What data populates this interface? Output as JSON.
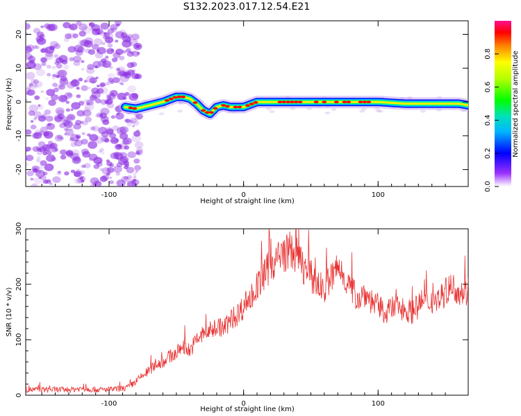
{
  "title": "S132.2023.017.12.54.E21",
  "colors": {
    "spectrum_ridge": "#ff0000",
    "snr_line": "#e83030",
    "scatter": "#8a2be2"
  },
  "chart_data": [
    {
      "type": "heatmap",
      "title": "S132.2023.017.12.54.E21",
      "xlabel": "Height of straight line (km)",
      "ylabel": "Frequency (Hz)",
      "xlim": [
        -162,
        167
      ],
      "ylim": [
        -25,
        24
      ],
      "xticks": [
        -100,
        0,
        100
      ],
      "yticks": [
        20,
        10,
        0,
        -10,
        -20
      ],
      "colorbar": {
        "label": "Normalized spectral amplitude",
        "range": [
          0,
          1
        ],
        "ticks": [
          "0.0",
          "0.2",
          "0.4",
          "0.6",
          "0.8"
        ],
        "colormap": "rainbow"
      },
      "noise_region_x": [
        -162,
        -85
      ],
      "ridge": {
        "x": [
          -88,
          -80,
          -70,
          -60,
          -50,
          -45,
          -40,
          -35,
          -30,
          -25,
          -20,
          -15,
          -10,
          -5,
          0,
          10,
          20,
          40,
          60,
          80,
          100,
          120,
          140,
          160,
          167
        ],
        "frequency": [
          -1.5,
          -2,
          -1,
          0,
          1.5,
          1.5,
          1,
          -0.5,
          -2.5,
          -3.5,
          -1.5,
          -1,
          -1.5,
          -1.5,
          -1.5,
          0,
          0,
          0,
          0,
          0,
          0,
          -0.5,
          -0.5,
          -0.5,
          -1
        ]
      }
    },
    {
      "type": "line",
      "xlabel": "Height of straight line (km)",
      "ylabel": "SNR (10 * v/v)",
      "xlim": [
        -162,
        167
      ],
      "ylim": [
        0,
        300
      ],
      "xticks": [
        -100,
        0,
        100
      ],
      "yticks": [
        0,
        100,
        200,
        300
      ],
      "series": [
        {
          "x": [
            -162,
            -150,
            -140,
            -130,
            -120,
            -110,
            -100,
            -90,
            -85,
            -80,
            -75,
            -70,
            -65,
            -60,
            -55,
            -50,
            -45,
            -40,
            -35,
            -30,
            -25,
            -20,
            -15,
            -10,
            -5,
            0,
            5,
            10,
            15,
            20,
            25,
            30,
            35,
            40,
            45,
            50,
            55,
            60,
            65,
            70,
            75,
            80,
            85,
            90,
            95,
            100,
            105,
            110,
            115,
            120,
            125,
            130,
            135,
            140,
            145,
            150,
            155,
            160,
            165,
            167
          ],
          "values": [
            10,
            10,
            10,
            10,
            12,
            10,
            10,
            12,
            15,
            25,
            35,
            45,
            55,
            60,
            70,
            75,
            90,
            80,
            100,
            110,
            115,
            125,
            120,
            135,
            145,
            160,
            175,
            195,
            215,
            235,
            245,
            255,
            262,
            250,
            230,
            215,
            200,
            190,
            210,
            230,
            215,
            190,
            175,
            185,
            170,
            160,
            150,
            155,
            160,
            155,
            150,
            160,
            165,
            170,
            175,
            185,
            195,
            190,
            185,
            190
          ]
        }
      ]
    }
  ]
}
